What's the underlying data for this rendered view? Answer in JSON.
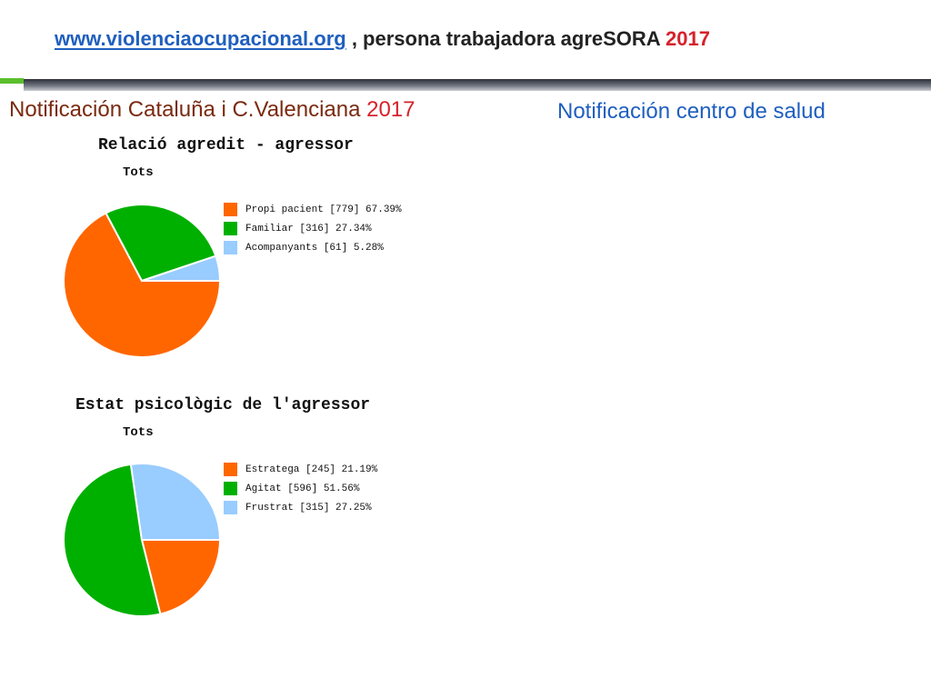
{
  "header": {
    "link_text": "www.violenciaocupacional.org",
    "text": " , persona trabajadora agreSORA ",
    "year": "2017"
  },
  "sections": {
    "left_title": "Notificación Cataluña i C.Valenciana ",
    "left_year": "2017",
    "right_title": "Notificación centro de salud"
  },
  "colors": {
    "orange": "#ff6600",
    "green": "#00b000",
    "light_blue": "#99ccff",
    "link_blue": "#1f5fbf",
    "year_red": "#d6222a"
  },
  "chart_data": [
    {
      "type": "pie",
      "title": "Relació agredit - agressor",
      "subtitle": "Tots",
      "legend_position": "right",
      "slices": [
        {
          "label": "Propi pacient [779] 67.39%",
          "value": 779,
          "percent": 67.39,
          "color": "#ff6600"
        },
        {
          "label": "Familiar [316] 27.34%",
          "value": 316,
          "percent": 27.34,
          "color": "#00b000"
        },
        {
          "label": "Acompanyants [61] 5.28%",
          "value": 61,
          "percent": 5.28,
          "color": "#99ccff"
        }
      ]
    },
    {
      "type": "pie",
      "title": "Estat psicològic de l'agressor",
      "subtitle": "Tots",
      "legend_position": "right",
      "slices": [
        {
          "label": "Estratega [245] 21.19%",
          "value": 245,
          "percent": 21.19,
          "color": "#ff6600"
        },
        {
          "label": "Agitat [596] 51.56%",
          "value": 596,
          "percent": 51.56,
          "color": "#00b000"
        },
        {
          "label": "Frustrat [315] 27.25%",
          "value": 315,
          "percent": 27.25,
          "color": "#99ccff"
        }
      ]
    }
  ]
}
